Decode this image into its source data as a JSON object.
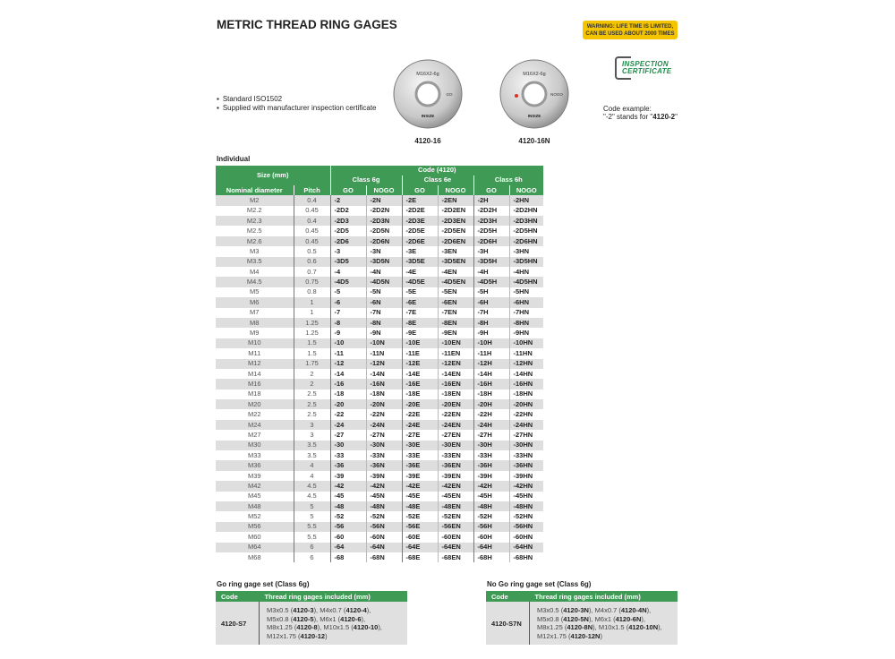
{
  "title": "METRIC THREAD RING GAGES",
  "warning": [
    "WARNING: LIFE TIME IS LIMITED,",
    "CAN BE USED ABOUT 2000 TIMES"
  ],
  "certificate": [
    "INSPECTION",
    "CERTIFICATE"
  ],
  "features": [
    "Standard ISO1502",
    "Supplied with manufacturer inspection certificate"
  ],
  "rings": [
    {
      "engraving": "M16X2-6g",
      "type": "GO",
      "label": "4120-16",
      "brand": "INSIZE"
    },
    {
      "engraving": "M16X2-6g",
      "type": "NOGO",
      "label": "4120-16N",
      "brand": "INSIZE",
      "dot_color": "#e03020"
    }
  ],
  "code_example": {
    "line1": "Code example:",
    "pre": "\"-2\" stands for \"",
    "code": "4120-2",
    "post": "\""
  },
  "individual": {
    "heading": "Individual",
    "header": {
      "size": "Size (mm)",
      "code": "Code (4120)",
      "classes": [
        "Class 6g",
        "Class 6e",
        "Class 6h"
      ],
      "nominal": "Nominal diameter",
      "pitch": "Pitch",
      "go": "GO",
      "nogo": "NOGO"
    },
    "rows": [
      [
        "M2",
        "0.4",
        "-2",
        "-2N",
        "-2E",
        "-2EN",
        "-2H",
        "-2HN"
      ],
      [
        "M2.2",
        "0.45",
        "-2D2",
        "-2D2N",
        "-2D2E",
        "-2D2EN",
        "-2D2H",
        "-2D2HN"
      ],
      [
        "M2.3",
        "0.4",
        "-2D3",
        "-2D3N",
        "-2D3E",
        "-2D3EN",
        "-2D3H",
        "-2D3HN"
      ],
      [
        "M2.5",
        "0.45",
        "-2D5",
        "-2D5N",
        "-2D5E",
        "-2D5EN",
        "-2D5H",
        "-2D5HN"
      ],
      [
        "M2.6",
        "0.45",
        "-2D6",
        "-2D6N",
        "-2D6E",
        "-2D6EN",
        "-2D6H",
        "-2D6HN"
      ],
      [
        "M3",
        "0.5",
        "-3",
        "-3N",
        "-3E",
        "-3EN",
        "-3H",
        "-3HN"
      ],
      [
        "M3.5",
        "0.6",
        "-3D5",
        "-3D5N",
        "-3D5E",
        "-3D5EN",
        "-3D5H",
        "-3D5HN"
      ],
      [
        "M4",
        "0.7",
        "-4",
        "-4N",
        "-4E",
        "-4EN",
        "-4H",
        "-4HN"
      ],
      [
        "M4.5",
        "0.75",
        "-4D5",
        "-4D5N",
        "-4D5E",
        "-4D5EN",
        "-4D5H",
        "-4D5HN"
      ],
      [
        "M5",
        "0.8",
        "-5",
        "-5N",
        "-5E",
        "-5EN",
        "-5H",
        "-5HN"
      ],
      [
        "M6",
        "1",
        "-6",
        "-6N",
        "-6E",
        "-6EN",
        "-6H",
        "-6HN"
      ],
      [
        "M7",
        "1",
        "-7",
        "-7N",
        "-7E",
        "-7EN",
        "-7H",
        "-7HN"
      ],
      [
        "M8",
        "1.25",
        "-8",
        "-8N",
        "-8E",
        "-8EN",
        "-8H",
        "-8HN"
      ],
      [
        "M9",
        "1.25",
        "-9",
        "-9N",
        "-9E",
        "-9EN",
        "-9H",
        "-9HN"
      ],
      [
        "M10",
        "1.5",
        "-10",
        "-10N",
        "-10E",
        "-10EN",
        "-10H",
        "-10HN"
      ],
      [
        "M11",
        "1.5",
        "-11",
        "-11N",
        "-11E",
        "-11EN",
        "-11H",
        "-11HN"
      ],
      [
        "M12",
        "1.75",
        "-12",
        "-12N",
        "-12E",
        "-12EN",
        "-12H",
        "-12HN"
      ],
      [
        "M14",
        "2",
        "-14",
        "-14N",
        "-14E",
        "-14EN",
        "-14H",
        "-14HN"
      ],
      [
        "M16",
        "2",
        "-16",
        "-16N",
        "-16E",
        "-16EN",
        "-16H",
        "-16HN"
      ],
      [
        "M18",
        "2.5",
        "-18",
        "-18N",
        "-18E",
        "-18EN",
        "-18H",
        "-18HN"
      ],
      [
        "M20",
        "2.5",
        "-20",
        "-20N",
        "-20E",
        "-20EN",
        "-20H",
        "-20HN"
      ],
      [
        "M22",
        "2.5",
        "-22",
        "-22N",
        "-22E",
        "-22EN",
        "-22H",
        "-22HN"
      ],
      [
        "M24",
        "3",
        "-24",
        "-24N",
        "-24E",
        "-24EN",
        "-24H",
        "-24HN"
      ],
      [
        "M27",
        "3",
        "-27",
        "-27N",
        "-27E",
        "-27EN",
        "-27H",
        "-27HN"
      ],
      [
        "M30",
        "3.5",
        "-30",
        "-30N",
        "-30E",
        "-30EN",
        "-30H",
        "-30HN"
      ],
      [
        "M33",
        "3.5",
        "-33",
        "-33N",
        "-33E",
        "-33EN",
        "-33H",
        "-33HN"
      ],
      [
        "M36",
        "4",
        "-36",
        "-36N",
        "-36E",
        "-36EN",
        "-36H",
        "-36HN"
      ],
      [
        "M39",
        "4",
        "-39",
        "-39N",
        "-39E",
        "-39EN",
        "-39H",
        "-39HN"
      ],
      [
        "M42",
        "4.5",
        "-42",
        "-42N",
        "-42E",
        "-42EN",
        "-42H",
        "-42HN"
      ],
      [
        "M45",
        "4.5",
        "-45",
        "-45N",
        "-45E",
        "-45EN",
        "-45H",
        "-45HN"
      ],
      [
        "M48",
        "5",
        "-48",
        "-48N",
        "-48E",
        "-48EN",
        "-48H",
        "-48HN"
      ],
      [
        "M52",
        "5",
        "-52",
        "-52N",
        "-52E",
        "-52EN",
        "-52H",
        "-52HN"
      ],
      [
        "M56",
        "5.5",
        "-56",
        "-56N",
        "-56E",
        "-56EN",
        "-56H",
        "-56HN"
      ],
      [
        "M60",
        "5.5",
        "-60",
        "-60N",
        "-60E",
        "-60EN",
        "-60H",
        "-60HN"
      ],
      [
        "M64",
        "6",
        "-64",
        "-64N",
        "-64E",
        "-64EN",
        "-64H",
        "-64HN"
      ],
      [
        "M68",
        "6",
        "-68",
        "-68N",
        "-68E",
        "-68EN",
        "-68H",
        "-68HN"
      ]
    ]
  },
  "sets": [
    {
      "heading": "Go ring gage set (Class 6g)",
      "col_code": "Code",
      "col_list": "Thread ring gages included (mm)",
      "code": "4120-S7",
      "lines": [
        [
          [
            "M3x0.5",
            "4120-3"
          ],
          [
            "M4x0.7",
            "4120-4"
          ]
        ],
        [
          [
            "M5x0.8",
            "4120-5"
          ],
          [
            "M6x1",
            "4120-6"
          ]
        ],
        [
          [
            "M8x1.25",
            "4120-8"
          ],
          [
            "M10x1.5",
            "4120-10"
          ]
        ],
        [
          [
            "M12x1.75",
            "4120-12"
          ]
        ]
      ]
    },
    {
      "heading": "No Go ring gage set (Class 6g)",
      "col_code": "Code",
      "col_list": "Thread ring gages included (mm)",
      "code": "4120-S7N",
      "lines": [
        [
          [
            "M3x0.5",
            "4120-3N"
          ],
          [
            "M4x0.7",
            "4120-4N"
          ]
        ],
        [
          [
            "M5x0.8",
            "4120-5N"
          ],
          [
            "M6x1",
            "4120-6N"
          ]
        ],
        [
          [
            "M8x1.25",
            "4120-8N"
          ],
          [
            "M10x1.5",
            "4120-10N"
          ]
        ],
        [
          [
            "M12x1.75",
            "4120-12N"
          ]
        ]
      ]
    }
  ],
  "colors": {
    "header_green": "#3f9a55",
    "warning_yellow": "#f5c400",
    "certificate_green": "#1e8a4a"
  }
}
